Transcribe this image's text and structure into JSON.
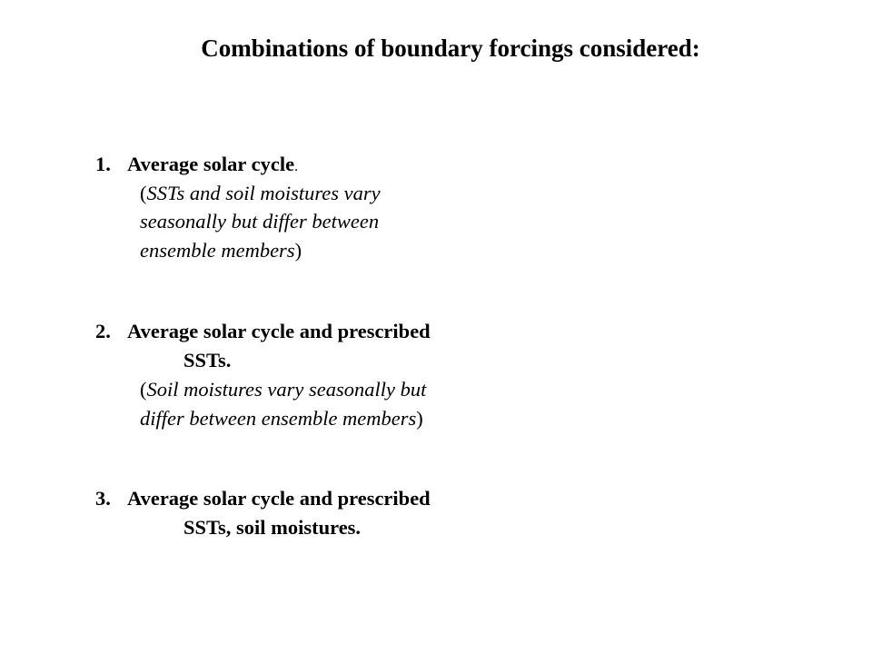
{
  "title": "Combinations of boundary forcings considered:",
  "items": [
    {
      "number": "1.",
      "heading": "Average solar cycle",
      "heading_suffix": ".",
      "note_lines": [
        "SSTs and soil moistures vary",
        "seasonally but differ between",
        "ensemble members"
      ]
    },
    {
      "number": "2.",
      "heading_lines": [
        "Average solar cycle and prescribed",
        "SSTs."
      ],
      "note_lines": [
        "Soil moistures vary seasonally but",
        "differ between ensemble members"
      ]
    },
    {
      "number": "3.",
      "heading_lines": [
        "Average solar cycle and prescribed",
        "SSTs, soil moistures."
      ]
    }
  ],
  "paren_open": "(",
  "paren_close": ")"
}
